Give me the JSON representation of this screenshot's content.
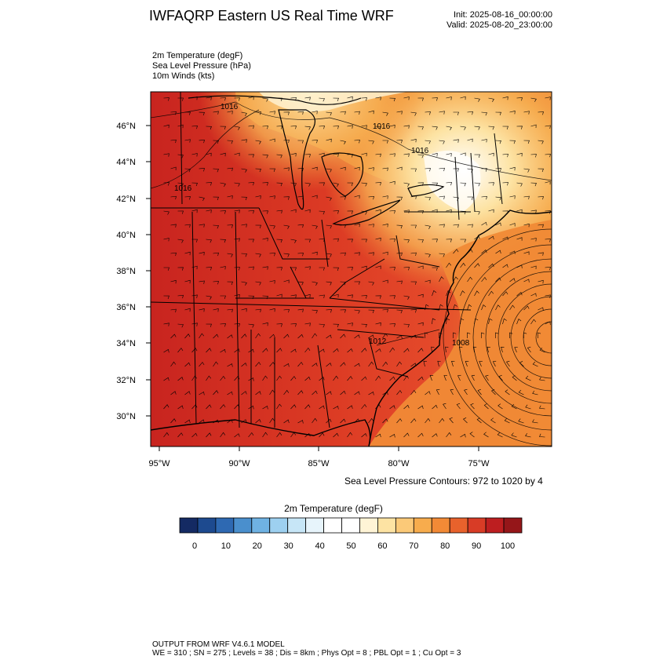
{
  "header": {
    "title": "IWFAQRP Eastern US Real Time WRF",
    "init": "Init: 2025-08-16_00:00:00",
    "valid": "Valid: 2025-08-20_23:00:00"
  },
  "fields": [
    "2m Temperature   (degF)",
    "Sea Level Pressure   (hPa)",
    "10m Winds   (kts)"
  ],
  "map": {
    "lat_labels": [
      "46°N",
      "44°N",
      "42°N",
      "40°N",
      "38°N",
      "36°N",
      "34°N",
      "32°N",
      "30°N"
    ],
    "lon_labels": [
      "95°W",
      "90°W",
      "85°W",
      "80°W",
      "75°W"
    ],
    "isobar_labels": [
      "1016",
      "1016",
      "1016",
      "1016",
      "1012",
      "1008"
    ],
    "lat_range": [
      28.5,
      47.9
    ],
    "lon_range": [
      -95.5,
      -70.5
    ],
    "colors": {
      "hot": "#c8241f",
      "warm": "#e4492a",
      "mild": "#f08a36",
      "cool": "#f7b153",
      "cold": "#fde3a3",
      "coldest": "#ffffff"
    }
  },
  "contour_note": "Sea Level Pressure Contours: 972 to 1020 by 4",
  "colorbar": {
    "title": "2m Temperature   (degF)",
    "labels": [
      "0",
      "10",
      "20",
      "30",
      "40",
      "50",
      "60",
      "70",
      "80",
      "90",
      "100"
    ],
    "colors": [
      "#142a63",
      "#1d4a8f",
      "#2e69b2",
      "#4a8fcd",
      "#6fb2e3",
      "#9dd0f0",
      "#c7e6f7",
      "#e7f4fb",
      "#ffffff",
      "#ffffff",
      "#fff4d6",
      "#fde3a3",
      "#fbc978",
      "#f7ac4d",
      "#f28a36",
      "#e8622c",
      "#d83c26",
      "#bd1e20",
      "#951619"
    ]
  },
  "footer": {
    "line1": "OUTPUT FROM WRF V4.6.1 MODEL",
    "line2": "WE = 310 ; SN = 275 ; Levels = 38 ; Dis = 8km ; Phys Opt = 8 ; PBL Opt = 1 ; Cu Opt = 3"
  }
}
